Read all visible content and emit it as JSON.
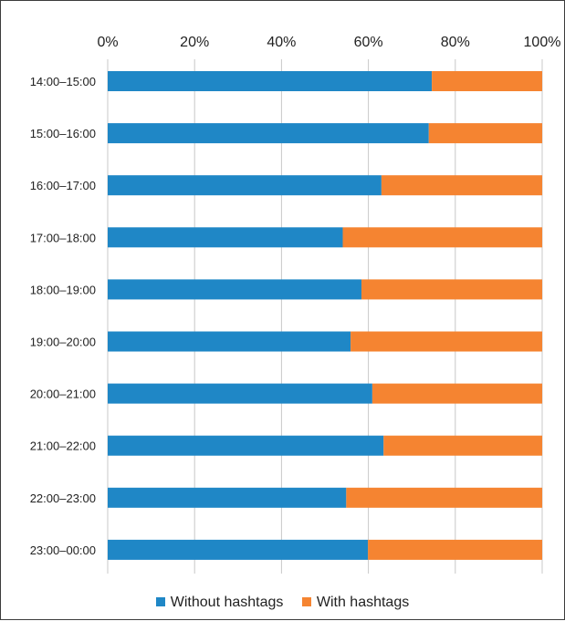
{
  "chart_data": {
    "type": "bar",
    "orientation": "horizontal",
    "stacked": "percent",
    "categories": [
      "14:00–15:00",
      "15:00–16:00",
      "16:00–17:00",
      "17:00–18:00",
      "18:00–19:00",
      "19:00–20:00",
      "20:00–21:00",
      "21:00–22:00",
      "22:00–23:00",
      "23:00–00:00"
    ],
    "series": [
      {
        "name": "Without hashtags",
        "color": "#1f87c6",
        "values": [
          74.6,
          73.9,
          63.0,
          54.1,
          58.4,
          55.9,
          60.9,
          63.5,
          54.9,
          59.9
        ]
      },
      {
        "name": "With hashtags",
        "color": "#f58431",
        "values": [
          25.4,
          26.1,
          37.0,
          45.9,
          41.6,
          44.1,
          39.1,
          36.5,
          45.1,
          40.1
        ]
      }
    ],
    "xaxis": {
      "position": "top",
      "min": 0,
      "max": 100,
      "ticks": [
        "0%",
        "20%",
        "40%",
        "60%",
        "80%",
        "100%"
      ]
    },
    "grid": "vertical",
    "legend_position": "bottom"
  }
}
